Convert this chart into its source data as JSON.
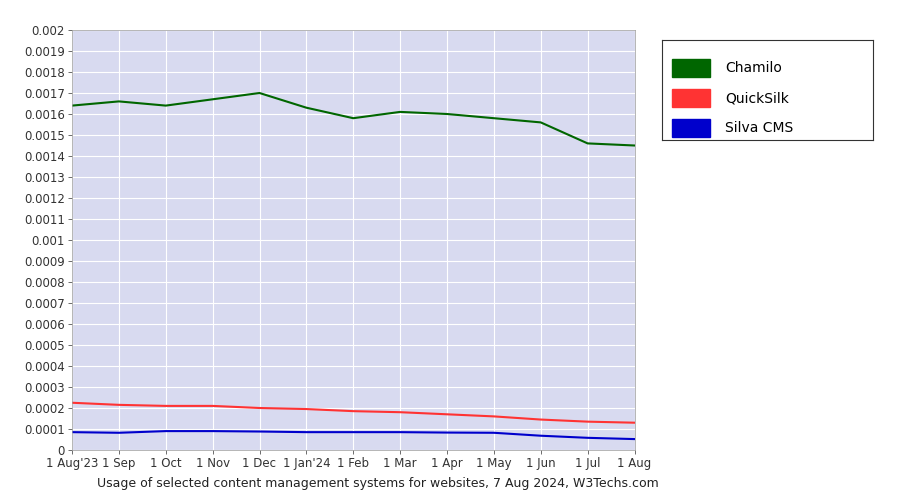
{
  "title": "Usage of selected content management systems for websites, 7 Aug 2024, W3Techs.com",
  "plot_bg_color": "#d8daf0",
  "outer_bg_color": "#ffffff",
  "x_labels": [
    "1 Aug'23",
    "1 Sep",
    "1 Oct",
    "1 Nov",
    "1 Dec",
    "1 Jan'24",
    "1 Feb",
    "1 Mar",
    "1 Apr",
    "1 May",
    "1 Jun",
    "1 Jul",
    "1 Aug"
  ],
  "chamilo": [
    0.00164,
    0.00166,
    0.00164,
    0.00167,
    0.0017,
    0.00163,
    0.00158,
    0.00161,
    0.0016,
    0.00158,
    0.00156,
    0.00146,
    0.00145
  ],
  "quicksilk": [
    0.000225,
    0.000215,
    0.00021,
    0.00021,
    0.0002,
    0.000195,
    0.000185,
    0.00018,
    0.00017,
    0.00016,
    0.000145,
    0.000135,
    0.00013
  ],
  "silva_cms": [
    8.5e-05,
    8.2e-05,
    9e-05,
    9e-05,
    8.8e-05,
    8.5e-05,
    8.5e-05,
    8.5e-05,
    8.3e-05,
    8.2e-05,
    6.8e-05,
    5.8e-05,
    5.2e-05
  ],
  "chamilo_color": "#006600",
  "quicksilk_color": "#ff3333",
  "silva_cms_color": "#0000cc",
  "ylim_min": 0,
  "ylim_max": 0.002,
  "ytick_step": 0.0001,
  "legend_labels": [
    "Chamilo",
    "QuickSilk",
    "Silva CMS"
  ],
  "legend_colors": [
    "#006600",
    "#ff3333",
    "#0000cc"
  ],
  "line_width": 1.5
}
